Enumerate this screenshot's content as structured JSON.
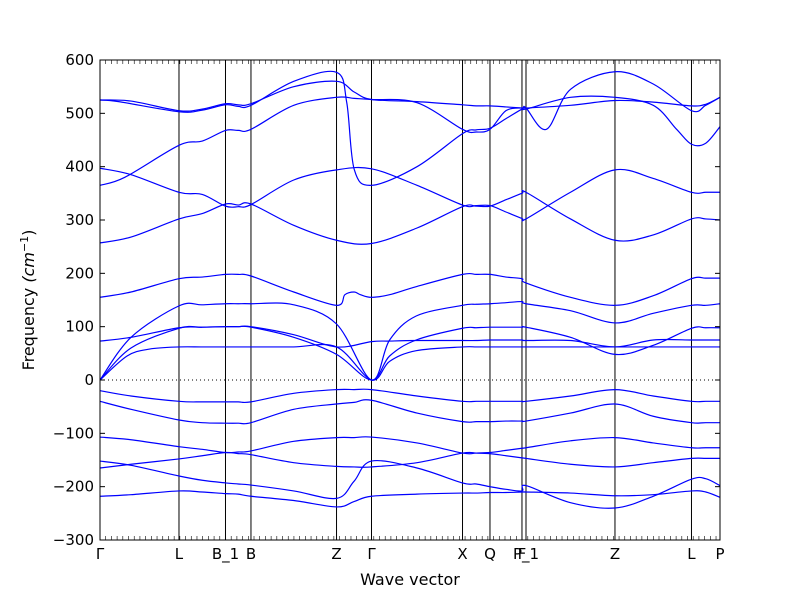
{
  "chart_data": {
    "type": "line",
    "title": "",
    "xlabel": "Wave vector",
    "ylabel": "Frequency",
    "ylabel_unit": "(cm",
    "ylabel_unit_exp": "−1",
    "ylabel_unit_close": ")",
    "ylim": [
      -300,
      600
    ],
    "yticks": [
      600,
      500,
      400,
      300,
      200,
      100,
      0,
      -100,
      -200,
      -300
    ],
    "ytick_labels": [
      "600",
      "500",
      "400",
      "300",
      "200",
      "100",
      "0",
      "−100",
      "−200",
      "−300"
    ],
    "xlim": [
      0,
      1
    ],
    "xticks": [
      {
        "label": "Γ",
        "pos": 0.0
      },
      {
        "label": "L",
        "pos": 0.1274
      },
      {
        "label": "B_1",
        "pos": 0.2024
      },
      {
        "label": "B",
        "pos": 0.2435
      },
      {
        "label": "Z",
        "pos": 0.3815
      },
      {
        "label": "Γ",
        "pos": 0.4379
      },
      {
        "label": "X",
        "pos": 0.5847
      },
      {
        "label": "Q",
        "pos": 0.629
      },
      {
        "label": "F",
        "pos": 0.6806
      },
      {
        "label": "P_1",
        "pos": 0.6871
      },
      {
        "label": "Z",
        "pos": 0.8306
      },
      {
        "label": "L",
        "pos": 0.954
      },
      {
        "label": "P",
        "pos": 1.0
      }
    ],
    "zero_line": true,
    "line_color": "#0000ff",
    "series": [
      {
        "x": [
          0,
          0.05,
          0.1274,
          0.1649,
          0.2024,
          0.223,
          0.2435,
          0.3125,
          0.3815,
          0.4097,
          0.4379,
          0.5113,
          0.5847,
          0.6068,
          0.629,
          0.6548,
          0.6806,
          0.6871,
          0.7589,
          0.8306,
          0.8923,
          0.954,
          0.977,
          1.0
        ],
        "y": [
          -218,
          -215,
          -208,
          -210,
          -213,
          -214,
          -218,
          -226,
          -238,
          -228,
          -218,
          -214,
          -212,
          -212,
          -211,
          -211,
          -210,
          -210,
          -212,
          -217,
          -215,
          -208,
          -210,
          -220
        ]
      },
      {
        "x": [
          0,
          0.05,
          0.1274,
          0.1649,
          0.2024,
          0.223,
          0.2435,
          0.3125,
          0.3815,
          0.4097,
          0.4379,
          0.5113,
          0.5847,
          0.6068,
          0.629,
          0.6548,
          0.6806,
          0.6871,
          0.7589,
          0.8306,
          0.8923,
          0.954,
          0.977,
          1.0
        ],
        "y": [
          -152,
          -160,
          -180,
          -188,
          -193,
          -195,
          -197,
          -208,
          -222,
          -190,
          -152,
          -165,
          -193,
          -195,
          -200,
          -205,
          -208,
          -198,
          -230,
          -240,
          -218,
          -186,
          -185,
          -198
        ]
      },
      {
        "x": [
          0,
          0.05,
          0.1274,
          0.1649,
          0.2024,
          0.223,
          0.2435,
          0.3125,
          0.3815,
          0.4097,
          0.4379,
          0.5113,
          0.5847,
          0.6068,
          0.629,
          0.6548,
          0.6806,
          0.6871,
          0.7589,
          0.8306,
          0.8923,
          0.954,
          0.977,
          1.0
        ],
        "y": [
          -165,
          -158,
          -148,
          -142,
          -136,
          -138,
          -140,
          -155,
          -162,
          -163,
          -163,
          -155,
          -137,
          -137,
          -138,
          -142,
          -146,
          -147,
          -158,
          -163,
          -155,
          -147,
          -147,
          -147
        ]
      },
      {
        "x": [
          0,
          0.05,
          0.1274,
          0.1649,
          0.2024,
          0.223,
          0.2435,
          0.3125,
          0.3815,
          0.4097,
          0.4379,
          0.5113,
          0.5847,
          0.6068,
          0.629,
          0.6548,
          0.6806,
          0.6871,
          0.7589,
          0.8306,
          0.8923,
          0.954,
          0.977,
          1.0
        ],
        "y": [
          -107,
          -112,
          -125,
          -130,
          -136,
          -135,
          -133,
          -115,
          -108,
          -108,
          -107,
          -118,
          -137,
          -137,
          -136,
          -132,
          -128,
          -127,
          -114,
          -108,
          -118,
          -127,
          -127,
          -127
        ]
      },
      {
        "x": [
          0,
          0.05,
          0.1274,
          0.1649,
          0.2024,
          0.223,
          0.2435,
          0.3125,
          0.3815,
          0.4097,
          0.4379,
          0.5113,
          0.5847,
          0.6068,
          0.629,
          0.6548,
          0.6806,
          0.6871,
          0.7589,
          0.8306,
          0.8923,
          0.954,
          0.977,
          1.0
        ],
        "y": [
          -40,
          -55,
          -75,
          -80,
          -81,
          -81,
          -80,
          -55,
          -45,
          -42,
          -38,
          -62,
          -78,
          -78,
          -78,
          -77,
          -77,
          -77,
          -62,
          -45,
          -68,
          -80,
          -80,
          -80
        ]
      },
      {
        "x": [
          0,
          0.05,
          0.1274,
          0.1649,
          0.2024,
          0.223,
          0.2435,
          0.3125,
          0.3815,
          0.4097,
          0.4379,
          0.5113,
          0.5847,
          0.6068,
          0.629,
          0.6548,
          0.6806,
          0.6871,
          0.7589,
          0.8306,
          0.8923,
          0.954,
          0.977,
          1.0
        ],
        "y": [
          -20,
          -30,
          -40,
          -41,
          -41,
          -41,
          -41,
          -25,
          -18,
          -18,
          -18,
          -30,
          -40,
          -40,
          -40,
          -40,
          -40,
          -40,
          -30,
          -18,
          -30,
          -40,
          -40,
          -40
        ]
      },
      {
        "x": [
          0,
          0.0437,
          0.08,
          0.1274,
          0.1649,
          0.2024,
          0.223,
          0.2435,
          0.3125,
          0.3815,
          0.4379,
          0.4671,
          0.51,
          0.5847,
          0.6068,
          0.629,
          0.6548,
          0.6806,
          0.6871,
          0.7589,
          0.8306,
          0.8923,
          0.954,
          0.977,
          1.0
        ],
        "y": [
          0,
          45,
          58,
          62,
          62,
          62,
          62,
          62,
          62,
          62,
          0,
          35,
          55,
          62,
          62,
          62,
          62,
          62,
          62,
          62,
          62,
          62,
          62,
          62,
          62
        ]
      },
      {
        "x": [
          0,
          0.05,
          0.1274,
          0.1649,
          0.2024,
          0.223,
          0.2435,
          0.3125,
          0.3815,
          0.4379,
          0.4671,
          0.51,
          0.5847,
          0.6068,
          0.629,
          0.6548,
          0.6806,
          0.6871,
          0.7589,
          0.8306,
          0.8923,
          0.954,
          0.977,
          1.0
        ],
        "y": [
          0,
          60,
          97,
          99,
          100,
          100,
          99,
          80,
          48,
          0,
          45,
          75,
          97,
          98,
          99,
          99,
          99,
          99,
          80,
          48,
          65,
          97,
          98,
          98
        ]
      },
      {
        "x": [
          0,
          0.05,
          0.1274,
          0.1649,
          0.2024,
          0.223,
          0.2435,
          0.3125,
          0.3815,
          0.4379,
          0.4671,
          0.51,
          0.5847,
          0.6068,
          0.629,
          0.6548,
          0.6806,
          0.6871,
          0.7589,
          0.8306,
          0.8923,
          0.954,
          0.977,
          1.0
        ],
        "y": [
          73,
          80,
          98,
          99,
          100,
          100,
          100,
          85,
          62,
          72,
          73,
          74,
          74,
          74,
          75,
          75,
          75,
          74,
          74,
          62,
          75,
          75,
          75,
          75
        ]
      },
      {
        "x": [
          0,
          0.05,
          0.1274,
          0.1649,
          0.2024,
          0.223,
          0.2435,
          0.3125,
          0.3815,
          0.4379,
          0.4671,
          0.51,
          0.5847,
          0.6068,
          0.629,
          0.6548,
          0.6806,
          0.6871,
          0.7589,
          0.8306,
          0.8923,
          0.954,
          0.977,
          1.0
        ],
        "y": [
          0,
          80,
          139,
          141,
          143,
          143,
          143,
          141,
          105,
          0,
          75,
          120,
          140,
          142,
          143,
          145,
          147,
          143,
          130,
          107,
          125,
          140,
          140,
          143
        ]
      },
      {
        "x": [
          0,
          0.05,
          0.1274,
          0.1649,
          0.2024,
          0.223,
          0.2435,
          0.3125,
          0.3815,
          0.395,
          0.41,
          0.42,
          0.4379,
          0.4671,
          0.51,
          0.5847,
          0.6068,
          0.629,
          0.6548,
          0.6806,
          0.6871,
          0.7589,
          0.8306,
          0.8923,
          0.954,
          0.977,
          1.0
        ],
        "y": [
          155,
          165,
          190,
          193,
          198,
          198,
          195,
          165,
          140,
          160,
          165,
          160,
          155,
          160,
          175,
          198,
          198,
          198,
          193,
          190,
          182,
          155,
          140,
          158,
          190,
          191,
          191
        ]
      },
      {
        "x": [
          0,
          0.05,
          0.1274,
          0.1649,
          0.2024,
          0.223,
          0.2435,
          0.3125,
          0.3815,
          0.4379,
          0.5113,
          0.5847,
          0.6068,
          0.629,
          0.6548,
          0.6806,
          0.6871,
          0.7589,
          0.8306,
          0.8923,
          0.954,
          0.977,
          1.0
        ],
        "y": [
          257,
          268,
          302,
          312,
          330,
          328,
          330,
          290,
          262,
          256,
          285,
          325,
          326,
          326,
          338,
          350,
          352,
          302,
          262,
          272,
          302,
          302,
          300
        ]
      },
      {
        "x": [
          0,
          0.05,
          0.1274,
          0.1649,
          0.2024,
          0.223,
          0.2435,
          0.3125,
          0.3815,
          0.4379,
          0.5113,
          0.5847,
          0.6068,
          0.629,
          0.6548,
          0.6806,
          0.6871,
          0.7589,
          0.8306,
          0.8923,
          0.954,
          0.977,
          1.0
        ],
        "y": [
          397,
          385,
          352,
          348,
          326,
          325,
          329,
          375,
          394,
          396,
          365,
          328,
          327,
          327,
          315,
          303,
          302,
          352,
          394,
          378,
          352,
          352,
          352
        ]
      },
      {
        "x": [
          0,
          0.04,
          0.1274,
          0.1649,
          0.2024,
          0.223,
          0.2435,
          0.3125,
          0.3815,
          0.41,
          0.4379,
          0.5113,
          0.5847,
          0.6068,
          0.629,
          0.6548,
          0.6806,
          0.6871,
          0.7589,
          0.8306,
          0.8923,
          0.93,
          0.954,
          0.977,
          1.0
        ],
        "y": [
          365,
          380,
          440,
          448,
          468,
          468,
          470,
          515,
          530,
          528,
          526,
          520,
          470,
          465,
          470,
          505,
          510,
          508,
          530,
          530,
          515,
          470,
          442,
          444,
          475
        ]
      },
      {
        "x": [
          0,
          0.03,
          0.1274,
          0.1649,
          0.2024,
          0.223,
          0.2435,
          0.3125,
          0.3815,
          0.398,
          0.41,
          0.4379,
          0.5113,
          0.5847,
          0.6068,
          0.629,
          0.6548,
          0.6806,
          0.6871,
          0.72,
          0.7589,
          0.8306,
          0.8923,
          0.954,
          0.977,
          1.0
        ],
        "y": [
          525,
          522,
          503,
          506,
          516,
          513,
          515,
          560,
          577,
          520,
          395,
          365,
          400,
          462,
          469,
          472,
          490,
          508,
          510,
          470,
          545,
          578,
          555,
          505,
          515,
          530
        ]
      },
      {
        "x": [
          0,
          0.05,
          0.1274,
          0.1649,
          0.2024,
          0.223,
          0.2435,
          0.3125,
          0.3815,
          0.41,
          0.4379,
          0.5113,
          0.5847,
          0.6068,
          0.629,
          0.6548,
          0.6806,
          0.6871,
          0.7589,
          0.8306,
          0.8923,
          0.954,
          0.977,
          1.0
        ],
        "y": [
          525,
          523,
          505,
          508,
          518,
          516,
          518,
          550,
          560,
          540,
          526,
          522,
          516,
          514,
          514,
          512,
          510,
          510,
          515,
          524,
          521,
          514,
          517,
          530
        ]
      }
    ]
  }
}
